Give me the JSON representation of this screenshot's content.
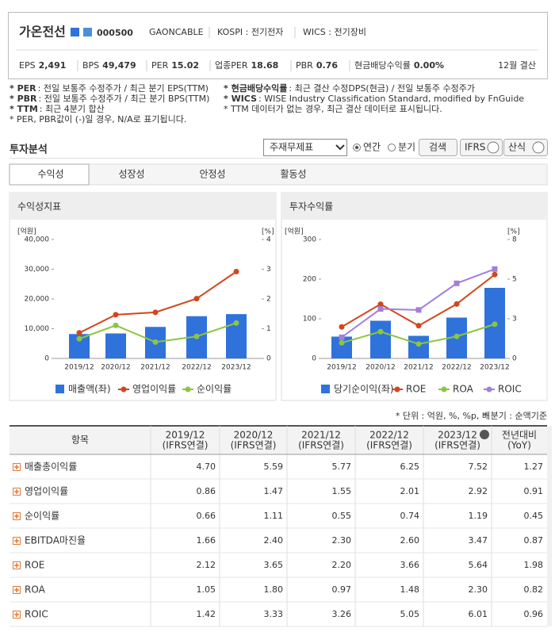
{
  "header": {
    "name": "가온전선",
    "code": "000500",
    "items": [
      "GAONCABLE",
      "KOSPI : 전기전자",
      "WICS : 전기장비"
    ],
    "stats": [
      {
        "label": "EPS",
        "value": "2,491"
      },
      {
        "label": "BPS",
        "value": "49,479"
      },
      {
        "label": "PER",
        "value": "15.02"
      },
      {
        "label": "업종PER",
        "value": "18.68"
      },
      {
        "label": "PBR",
        "value": "0.76"
      },
      {
        "label": "현금배당수익률",
        "value": "0.00%"
      }
    ],
    "settle": "12월 결산"
  },
  "notes": {
    "left": [
      {
        "label": "* PER",
        "text": ": 전일 보통주 수정주가 / 최근 분기 EPS(TTM)"
      },
      {
        "label": "* PBR",
        "text": ": 전일 보통주 수정주가 / 최근 분기 BPS(TTM)"
      },
      {
        "label": "* TTM",
        "text": ": 최근 4분기 합산"
      },
      {
        "label": "",
        "text": "* PER, PBR값이 (-)일 경우, N/A로 표기됩니다."
      }
    ],
    "right": [
      {
        "label": "* 현금배당수익률",
        "text": ": 최근 결산 수정DPS(현금) / 전일 보통주 수정주가"
      },
      {
        "label": "* WICS",
        "text": ": WISE Industry Classification Standard, modified by FnGuide"
      },
      {
        "label": "",
        "text": "* TTM 데이터가 없는 경우, 최근 결산 데이터로 표시됩니다."
      }
    ]
  },
  "section": {
    "title": "투자분석",
    "select": "주재무제표",
    "radios": [
      "연간",
      "분기"
    ],
    "buttons": [
      "검색",
      "IFRS",
      "산식"
    ]
  },
  "tabs": [
    "수익성",
    "성장성",
    "안정성",
    "활동성"
  ],
  "chart_data": [
    {
      "type": "combo",
      "title": "수익성지표",
      "y_label": "[억원]",
      "y2_label": "[%]",
      "categories": [
        "2019/12",
        "2020/12",
        "2021/12",
        "2022/12",
        "2023/12"
      ],
      "ylim": [
        0,
        40000
      ],
      "yticks": [
        0,
        {
          "value": 10000,
          "label": "10,000"
        },
        {
          "value": 20000,
          "label": "20,000"
        },
        {
          "value": 30000,
          "label": "30,000"
        },
        {
          "value": 40000,
          "label": "40,000"
        }
      ],
      "y2lim": [
        0,
        4
      ],
      "y2ticks": [
        0,
        1,
        2,
        3,
        4
      ],
      "series": [
        {
          "name": "매출액(좌)",
          "type": "bar",
          "color": "#2f72dc",
          "values": [
            8200,
            8400,
            10600,
            14200,
            14900
          ]
        },
        {
          "name": "영업이익률",
          "type": "line",
          "axis": "y2",
          "color": "#d2461e",
          "values": [
            0.86,
            1.47,
            1.55,
            2.01,
            2.92
          ]
        },
        {
          "name": "순이익률",
          "type": "line",
          "axis": "y2",
          "color": "#8cc63f",
          "values": [
            0.66,
            1.11,
            0.55,
            0.74,
            1.19
          ]
        }
      ]
    },
    {
      "type": "combo",
      "title": "투자수익률",
      "y_label": "[억원]",
      "y2_label": "[%]",
      "categories": [
        "2019/12",
        "2020/12",
        "2021/12",
        "2022/12",
        "2023/12"
      ],
      "ylim": [
        0,
        300
      ],
      "yticks": [
        0,
        100,
        200,
        300
      ],
      "y2lim": [
        0,
        8
      ],
      "y2ticks": [
        0,
        {
          "value": 2.667,
          "label": "3"
        },
        {
          "value": 5.333,
          "label": "5"
        },
        8
      ],
      "series": [
        {
          "name": "당기순이익(좌)",
          "type": "bar",
          "color": "#2f72dc",
          "values": [
            55,
            95,
            57,
            103,
            178
          ]
        },
        {
          "name": "ROE",
          "type": "line",
          "axis": "y2",
          "color": "#d2461e",
          "values": [
            2.12,
            3.65,
            2.2,
            3.66,
            5.64
          ]
        },
        {
          "name": "ROA",
          "type": "line",
          "axis": "y2",
          "color": "#8cc63f",
          "values": [
            1.05,
            1.8,
            0.97,
            1.48,
            2.3
          ]
        },
        {
          "name": "ROIC",
          "type": "line",
          "axis": "y2",
          "color": "#a27fd9",
          "values": [
            1.42,
            3.33,
            3.26,
            5.05,
            6.01
          ]
        }
      ]
    }
  ],
  "table": {
    "notes": [
      "* 단위 : 억원, %, %p, 배",
      "* 분기 : 순액기준"
    ],
    "columns": [
      [
        "항목"
      ],
      [
        "2019/12",
        "(IFRS연결)"
      ],
      [
        "2020/12",
        "(IFRS연결)"
      ],
      [
        "2021/12",
        "(IFRS연결)"
      ],
      [
        "2022/12",
        "(IFRS연결)"
      ],
      [
        "2023/12",
        "(IFRS연결)"
      ],
      [
        "전년대비",
        "(YoY)"
      ]
    ],
    "rows": [
      {
        "label": "매출총이익률",
        "values": [
          "4.70",
          "5.59",
          "5.77",
          "6.25",
          "7.52",
          "1.27"
        ]
      },
      {
        "label": "영업이익률",
        "values": [
          "0.86",
          "1.47",
          "1.55",
          "2.01",
          "2.92",
          "0.91"
        ]
      },
      {
        "label": "순이익률",
        "values": [
          "0.66",
          "1.11",
          "0.55",
          "0.74",
          "1.19",
          "0.45"
        ]
      },
      {
        "label": "EBITDA마진율",
        "values": [
          "1.66",
          "2.40",
          "2.30",
          "2.60",
          "3.47",
          "0.87"
        ]
      },
      {
        "label": "ROE",
        "values": [
          "2.12",
          "3.65",
          "2.20",
          "3.66",
          "5.64",
          "1.98"
        ]
      },
      {
        "label": "ROA",
        "values": [
          "1.05",
          "1.80",
          "0.97",
          "1.48",
          "2.30",
          "0.82"
        ]
      },
      {
        "label": "ROIC",
        "values": [
          "1.42",
          "3.33",
          "3.26",
          "5.05",
          "6.01",
          "0.96"
        ]
      }
    ]
  }
}
